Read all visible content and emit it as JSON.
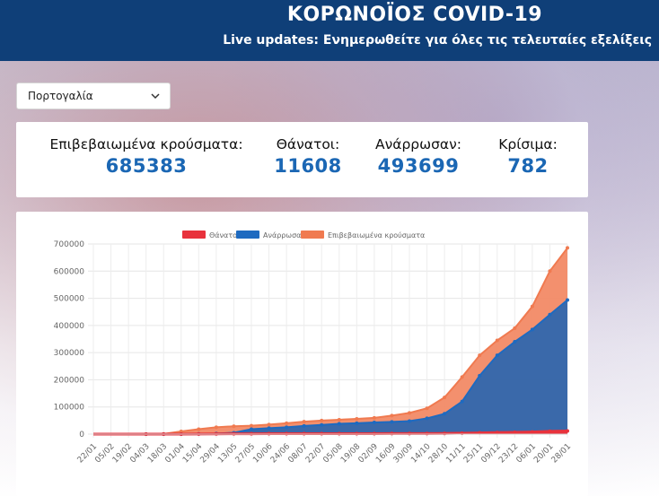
{
  "header": {
    "title": "ΚΟΡΩΝΟΪΟΣ COVID-19",
    "subtitle": "Live updates: Ενημερωθείτε για όλες τις τελευταίες εξελίξεις"
  },
  "country_select": {
    "selected": "Πορτογαλία"
  },
  "stats": [
    {
      "label": "Επιβεβαιωμένα κρούσματα:",
      "value": "685383"
    },
    {
      "label": "Θάνατοι:",
      "value": "11608"
    },
    {
      "label": "Ανάρρωσαν:",
      "value": "493699"
    },
    {
      "label": "Κρίσιμα:",
      "value": "782"
    }
  ],
  "colors": {
    "header_bg": "#0f3f78",
    "accent_value": "#1b67b4",
    "deaths": "#e8323c",
    "recovered": "#1e6ac0",
    "confirmed": "#f07a50"
  },
  "chart_data": {
    "type": "area",
    "legend": [
      "Θάνατοι",
      "Ανάρρωσαν",
      "Επιβεβαιωμένα κρούσματα"
    ],
    "ylim": [
      0,
      700000
    ],
    "y_ticks": [
      "0",
      "100000",
      "200000",
      "300000",
      "400000",
      "500000",
      "600000",
      "700000"
    ],
    "x_tick_labels": [
      "22/01",
      "05/02",
      "19/02",
      "04/03",
      "18/03",
      "01/04",
      "15/04",
      "29/04",
      "13/05",
      "27/05",
      "10/06",
      "24/06",
      "08/07",
      "22/07",
      "05/08",
      "19/08",
      "02/09",
      "16/09",
      "30/09",
      "14/10",
      "28/10",
      "11/11",
      "25/11",
      "09/12",
      "23/12",
      "06/01",
      "20/01",
      "28/01"
    ],
    "series": [
      {
        "name": "Επιβεβαιωμένα κρούσματα",
        "values": [
          0,
          0,
          0,
          0,
          1000,
          10000,
          18000,
          25000,
          29000,
          31000,
          35000,
          40000,
          46000,
          50000,
          53000,
          56000,
          60000,
          68000,
          78000,
          95000,
          135000,
          210000,
          290000,
          345000,
          390000,
          470000,
          600000,
          685383
        ]
      },
      {
        "name": "Ανάρρωσαν",
        "values": [
          0,
          0,
          0,
          0,
          0,
          200,
          1000,
          2000,
          5000,
          18000,
          22000,
          25000,
          30000,
          34000,
          38000,
          40000,
          43000,
          45000,
          48000,
          58000,
          75000,
          120000,
          215000,
          290000,
          340000,
          385000,
          440000,
          493699
        ]
      },
      {
        "name": "Θάνατοι",
        "values": [
          0,
          0,
          0,
          0,
          10,
          200,
          600,
          950,
          1180,
          1330,
          1500,
          1560,
          1640,
          1720,
          1770,
          1800,
          1840,
          1950,
          2050,
          2230,
          2620,
          3380,
          4500,
          5600,
          6600,
          8000,
          10200,
          11608
        ]
      }
    ]
  }
}
